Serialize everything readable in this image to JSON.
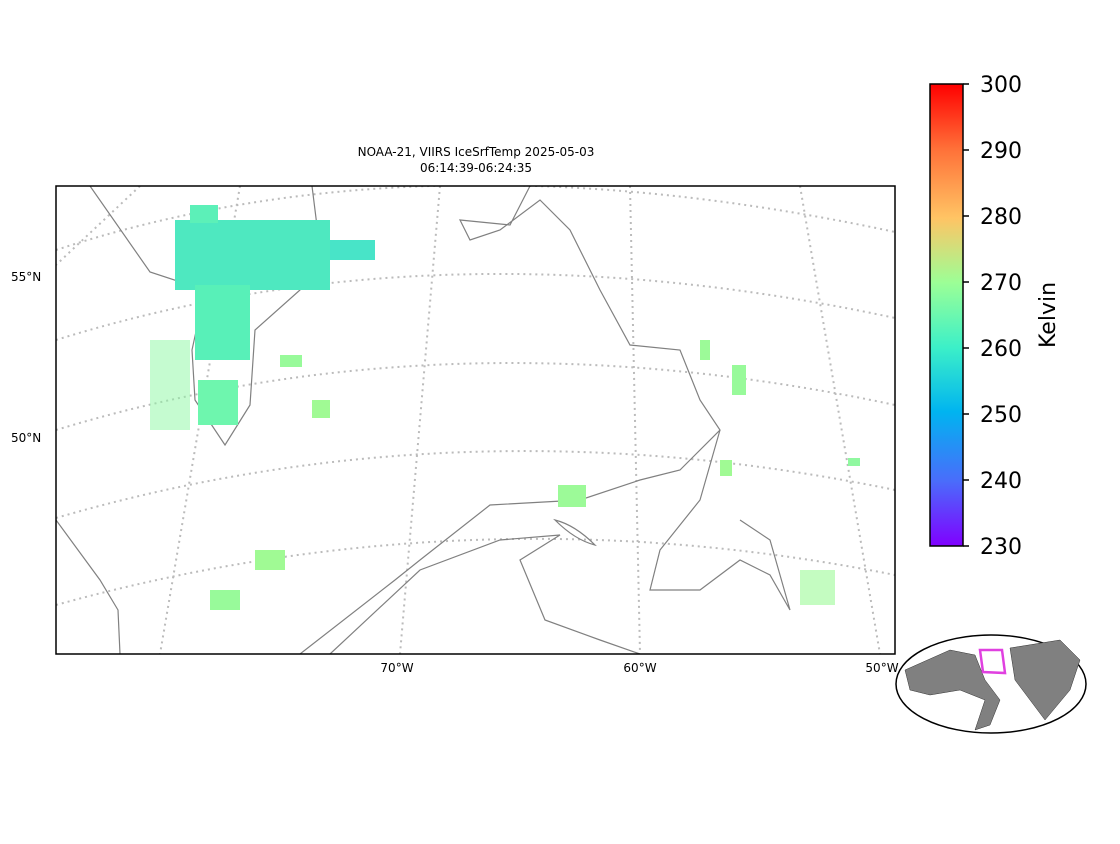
{
  "title": [
    "NOAA-21, VIIRS IceSrfTemp 2025-05-03",
    "06:14:39-06:24:35"
  ],
  "map": {
    "lat_labels": [
      "55°N",
      "50°N"
    ],
    "lon_labels": [
      "70°W",
      "60°W",
      "50°W"
    ]
  },
  "colorbar": {
    "label": "Kelvin",
    "lim": [
      230,
      300
    ],
    "ticks": [
      230,
      240,
      250,
      260,
      270,
      280,
      290,
      300
    ]
  }
}
